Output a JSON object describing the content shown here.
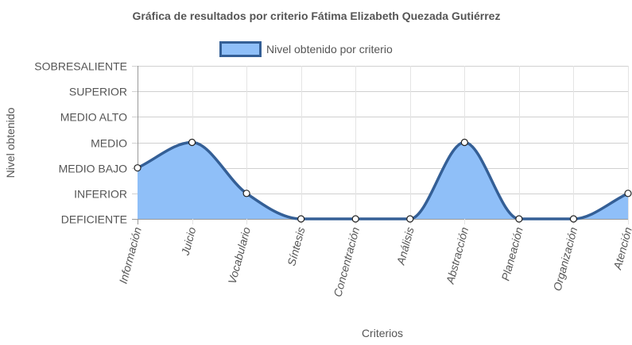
{
  "chart_data": {
    "type": "area",
    "title": "Gráfica de resultados por criterio Fátima Elizabeth Quezada Gutiérrez",
    "xlabel": "Criterios",
    "ylabel": "Nivel obtenido",
    "levels": [
      "DEFICIENTE",
      "INFERIOR",
      "MEDIO BAJO",
      "MEDIO",
      "MEDIO ALTO",
      "SUPERIOR",
      "SOBRESALIENTE"
    ],
    "categories": [
      "Información",
      "Juicio",
      "Vocabulario",
      "Síntesis",
      "Concentración",
      "Análisis",
      "Abstracción",
      "Planeación",
      "Organización",
      "Atención"
    ],
    "series": [
      {
        "name": "Nivel obtenido por criterio",
        "values": [
          2,
          3,
          1,
          0,
          0,
          0,
          3,
          0,
          0,
          1
        ],
        "fill_color": "#8fbff8",
        "line_color": "#345f96"
      }
    ],
    "ylim": [
      0,
      6
    ],
    "grid": true,
    "legend_position": "top"
  }
}
